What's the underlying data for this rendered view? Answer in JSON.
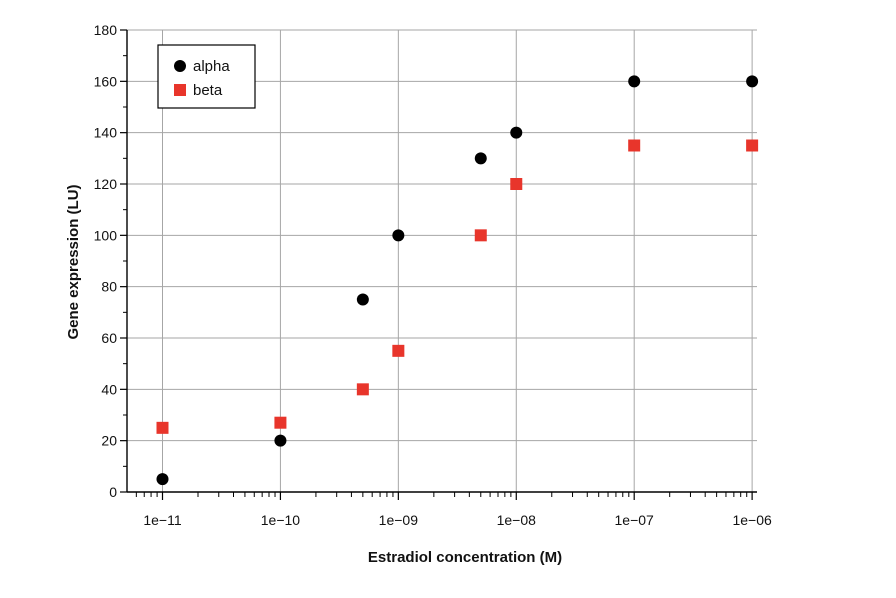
{
  "chart_data": {
    "type": "scatter",
    "title": "",
    "xlabel": "Estradiol concentration (M)",
    "ylabel": "Gene expression (LU)",
    "xscale": "log",
    "xlim": [
      5e-12,
      1.1e-06
    ],
    "ylim": [
      0,
      180
    ],
    "grid": true,
    "legend_position": "top-left",
    "x_tick_values": [
      1e-11,
      1e-10,
      1e-09,
      1e-08,
      1e-07,
      1e-06
    ],
    "x_tick_labels": [
      "1e−11",
      "1e−10",
      "1e−09",
      "1e−08",
      "1e−07",
      "1e−06"
    ],
    "y_ticks": [
      0,
      20,
      40,
      60,
      80,
      100,
      120,
      140,
      160,
      180
    ],
    "series": [
      {
        "name": "alpha",
        "marker": "circle",
        "color": "#000000",
        "x": [
          1e-11,
          1e-10,
          5e-10,
          1e-09,
          5e-09,
          1e-08,
          1e-07,
          1e-06
        ],
        "y": [
          5,
          20,
          75,
          100,
          130,
          140,
          160,
          160
        ]
      },
      {
        "name": "beta",
        "marker": "square",
        "color": "#e8352b",
        "x": [
          1e-11,
          1e-10,
          5e-10,
          1e-09,
          5e-09,
          1e-08,
          1e-07,
          1e-06
        ],
        "y": [
          25,
          27,
          40,
          55,
          100,
          120,
          135,
          135
        ]
      }
    ]
  }
}
